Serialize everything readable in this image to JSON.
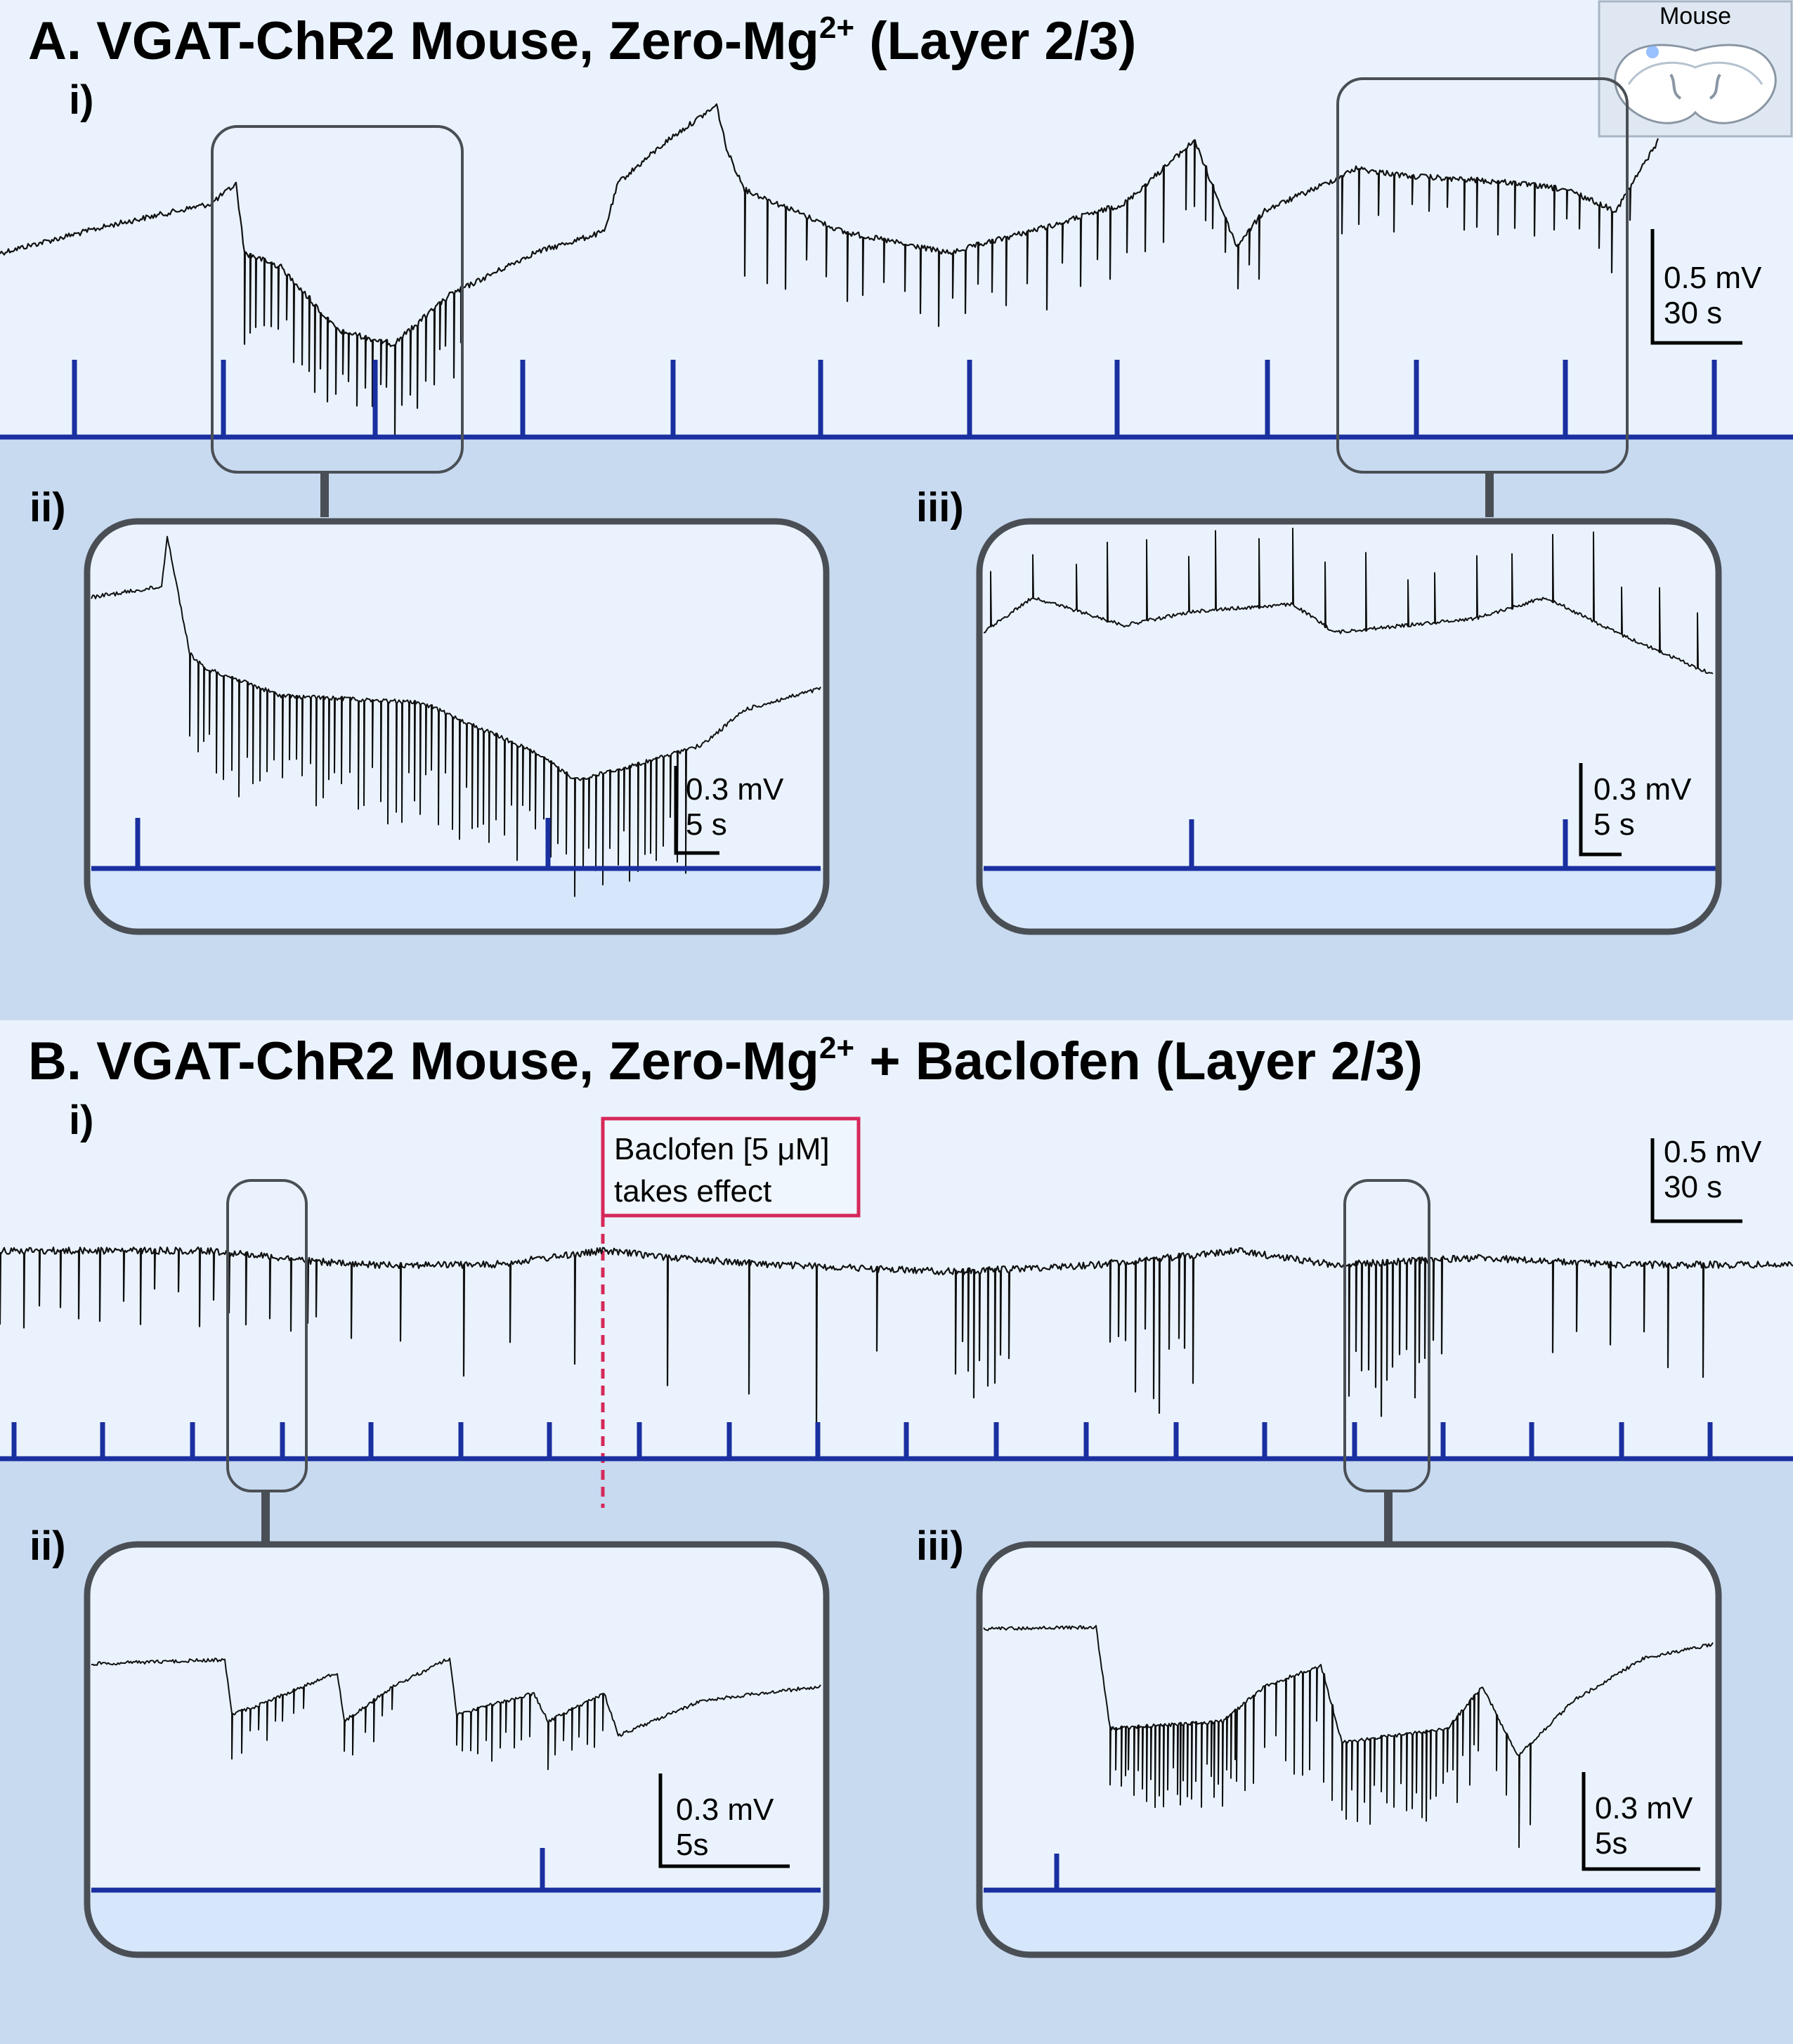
{
  "panel_a": {
    "title": "A. VGAT-ChR2 Mouse, Zero-Mg",
    "title_sup": "2+",
    "title_tail": " (Layer 2/3)",
    "sub_i": "i)",
    "sub_ii": "ii)",
    "sub_iii": "iii)",
    "scale_i": [
      "0.5 mV",
      "30 s"
    ],
    "scale_ii": [
      "0.3 mV",
      "5 s"
    ],
    "scale_iii": [
      "0.3 mV",
      "5 s"
    ],
    "inset_label": "Mouse"
  },
  "panel_b": {
    "title": "B. VGAT-ChR2 Mouse, Zero-Mg",
    "title_sup": "2+",
    "title_tail": " + Baclofen (Layer 2/3)",
    "sub_i": "i)",
    "sub_ii": "ii)",
    "sub_iii": "iii)",
    "scale_i": [
      "0.5 mV",
      "30 s"
    ],
    "scale_ii": [
      "0.3 mV",
      "5s"
    ],
    "scale_iii": [
      "0.3 mV",
      "5s"
    ],
    "annotation": [
      "Baclofen [5 μM]",
      "takes effect"
    ]
  },
  "colors": {
    "background_light": "#eaf3fd",
    "background_panel": "#c8daf0",
    "box_fill": "#d6e6fb",
    "stimulus": "#1a2fa0",
    "trace": "#111111",
    "frame": "#4a4f55",
    "annotation": "#d6285a"
  }
}
